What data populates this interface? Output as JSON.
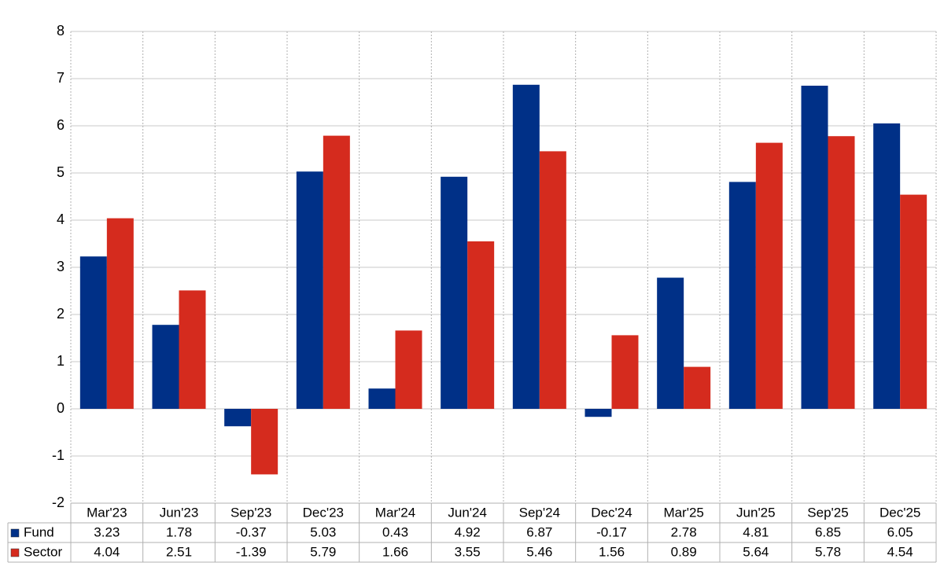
{
  "chart_data": {
    "type": "bar",
    "categories": [
      "Mar'23",
      "Jun'23",
      "Sep'23",
      "Dec'23",
      "Mar'24",
      "Jun'24",
      "Sep'24",
      "Dec'24",
      "Mar'25",
      "Jun'25",
      "Sep'25",
      "Dec'25"
    ],
    "series": [
      {
        "name": "Fund",
        "color": "#003087",
        "values": [
          3.23,
          1.78,
          -0.37,
          5.03,
          0.43,
          4.92,
          6.87,
          -0.17,
          2.78,
          4.81,
          6.85,
          6.05
        ]
      },
      {
        "name": "Sector",
        "color": "#d52b1e",
        "values": [
          4.04,
          2.51,
          -1.39,
          5.79,
          1.66,
          3.55,
          5.46,
          1.56,
          0.89,
          5.64,
          5.78,
          4.54
        ]
      }
    ],
    "ylim": [
      -2,
      8
    ],
    "yticks": [
      -2,
      -1,
      0,
      1,
      2,
      3,
      4,
      5,
      6,
      7,
      8
    ],
    "grid": true,
    "negative_color": "#ff0000"
  }
}
